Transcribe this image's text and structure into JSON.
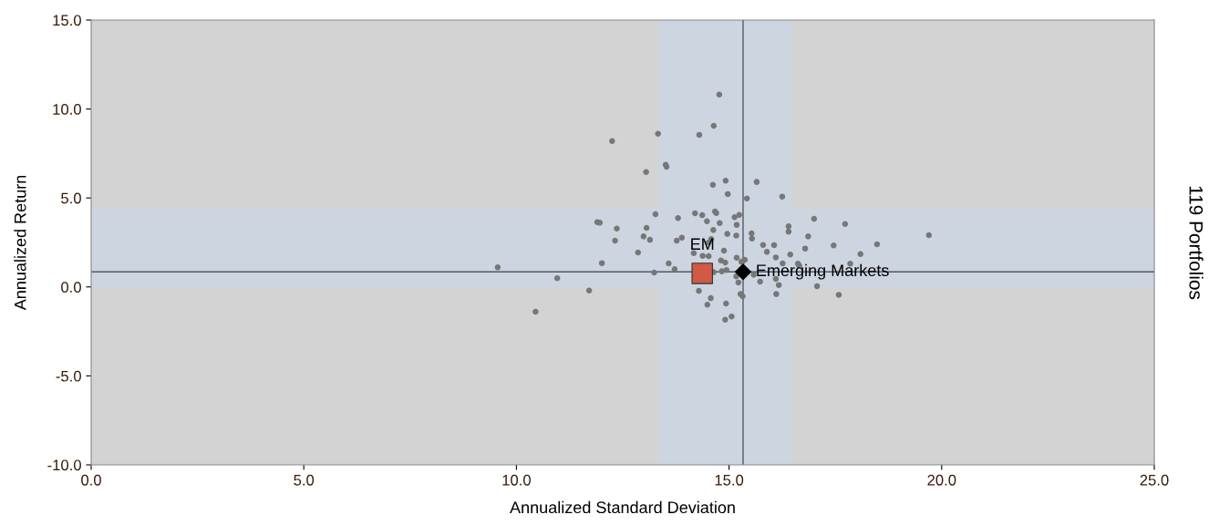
{
  "chart_data": {
    "type": "scatter",
    "xlabel": "Annualized Standard Deviation",
    "ylabel": "Annualized Return",
    "y2label": "119 Portfolios",
    "xlim": [
      0,
      25
    ],
    "ylim": [
      -10,
      15
    ],
    "xticks": [
      {
        "value": 0,
        "label": "0.0"
      },
      {
        "value": 5,
        "label": "5.0"
      },
      {
        "value": 10,
        "label": "10.0"
      },
      {
        "value": 15,
        "label": "15.0"
      },
      {
        "value": 20,
        "label": "20.0"
      },
      {
        "value": 25,
        "label": "25.0"
      }
    ],
    "yticks": [
      {
        "value": -10,
        "label": "-10.0"
      },
      {
        "value": -5,
        "label": "-5.0"
      },
      {
        "value": 0,
        "label": "0.0"
      },
      {
        "value": 5,
        "label": "5.0"
      },
      {
        "value": 10,
        "label": "10.0"
      },
      {
        "value": 15,
        "label": "15.0"
      }
    ],
    "grid": false,
    "legend": false,
    "bands": [
      {
        "axis": "x",
        "from": 13.34,
        "to": 16.47,
        "color": "#cdd5e1"
      },
      {
        "axis": "y",
        "from": -0.06,
        "to": 4.4,
        "color": "#cdd5e1"
      }
    ],
    "ref_lines": [
      {
        "axis": "x",
        "value": 15.33,
        "color": "#505a66"
      },
      {
        "axis": "y",
        "value": 0.85,
        "color": "#505a66"
      }
    ],
    "series": [
      {
        "color": "#777777",
        "marker": "circle",
        "x": [
          14.77,
          14.64,
          14.3,
          13.33,
          12.25,
          13.05,
          13.51,
          13.53,
          14.62,
          14.92,
          14.97,
          15.42,
          15.65,
          16.25,
          13.27,
          11.9,
          11.96,
          12.36,
          12.32,
          13.06,
          12.99,
          13.14,
          13.8,
          14.2,
          14.37,
          14.48,
          14.67,
          14.7,
          14.78,
          14.63,
          14.96,
          15.13,
          15.24,
          15.18,
          15.17,
          13.89,
          13.77,
          14.58,
          14.52,
          12.86,
          14.17,
          14.38,
          14.52,
          14.88,
          15.18,
          14.81,
          15.32,
          12.01,
          13.58,
          15.53,
          15.54,
          17.0,
          17.73,
          16.4,
          16.4,
          16.86,
          15.8,
          16.06,
          15.89,
          16.1,
          16.44,
          16.79,
          17.46,
          18.48,
          18.09,
          19.7,
          16.26,
          16.62,
          17.85,
          15.29,
          15.37,
          9.56,
          10.96,
          11.71,
          10.45,
          13.24,
          13.72,
          14.29,
          14.57,
          14.49,
          14.93,
          14.91,
          15.06,
          14.64,
          14.83,
          14.94,
          15.17,
          15.22,
          15.27,
          15.32,
          14.91,
          15.58,
          15.73,
          16.1,
          16.17,
          16.11,
          17.07,
          17.58,
          16.65
        ],
        "values": [
          10.81,
          9.06,
          8.55,
          8.61,
          8.2,
          6.46,
          6.87,
          6.75,
          5.74,
          5.97,
          5.22,
          4.97,
          5.9,
          5.08,
          4.09,
          3.64,
          3.61,
          3.28,
          2.6,
          3.32,
          2.84,
          2.65,
          3.87,
          4.14,
          4.04,
          3.69,
          4.24,
          4.15,
          3.59,
          3.2,
          2.98,
          3.92,
          4.05,
          3.49,
          2.89,
          2.77,
          2.6,
          2.69,
          2.5,
          1.94,
          1.9,
          1.75,
          1.73,
          2.04,
          1.64,
          1.49,
          1.44,
          1.34,
          1.32,
          3.01,
          2.72,
          3.83,
          3.54,
          3.41,
          3.11,
          2.84,
          2.36,
          2.35,
          1.97,
          1.66,
          1.82,
          2.16,
          2.33,
          2.4,
          1.85,
          2.91,
          1.32,
          1.31,
          1.31,
          1.41,
          1.53,
          1.1,
          0.49,
          -0.2,
          -1.39,
          0.81,
          1.0,
          -0.22,
          -0.63,
          -1.0,
          -0.93,
          -1.84,
          -1.66,
          0.83,
          0.88,
          0.95,
          0.59,
          0.25,
          -0.4,
          -0.52,
          1.37,
          0.69,
          0.3,
          0.45,
          0.11,
          -0.4,
          0.04,
          -0.44,
          1.2
        ]
      },
      {
        "name": "EM",
        "color": "#d05a45",
        "marker": "square",
        "x": [
          14.37
        ],
        "values": [
          0.76
        ]
      },
      {
        "name": "Emerging Markets",
        "color": "#000000",
        "marker": "diamond",
        "x": [
          15.33
        ],
        "values": [
          0.85
        ]
      }
    ]
  }
}
